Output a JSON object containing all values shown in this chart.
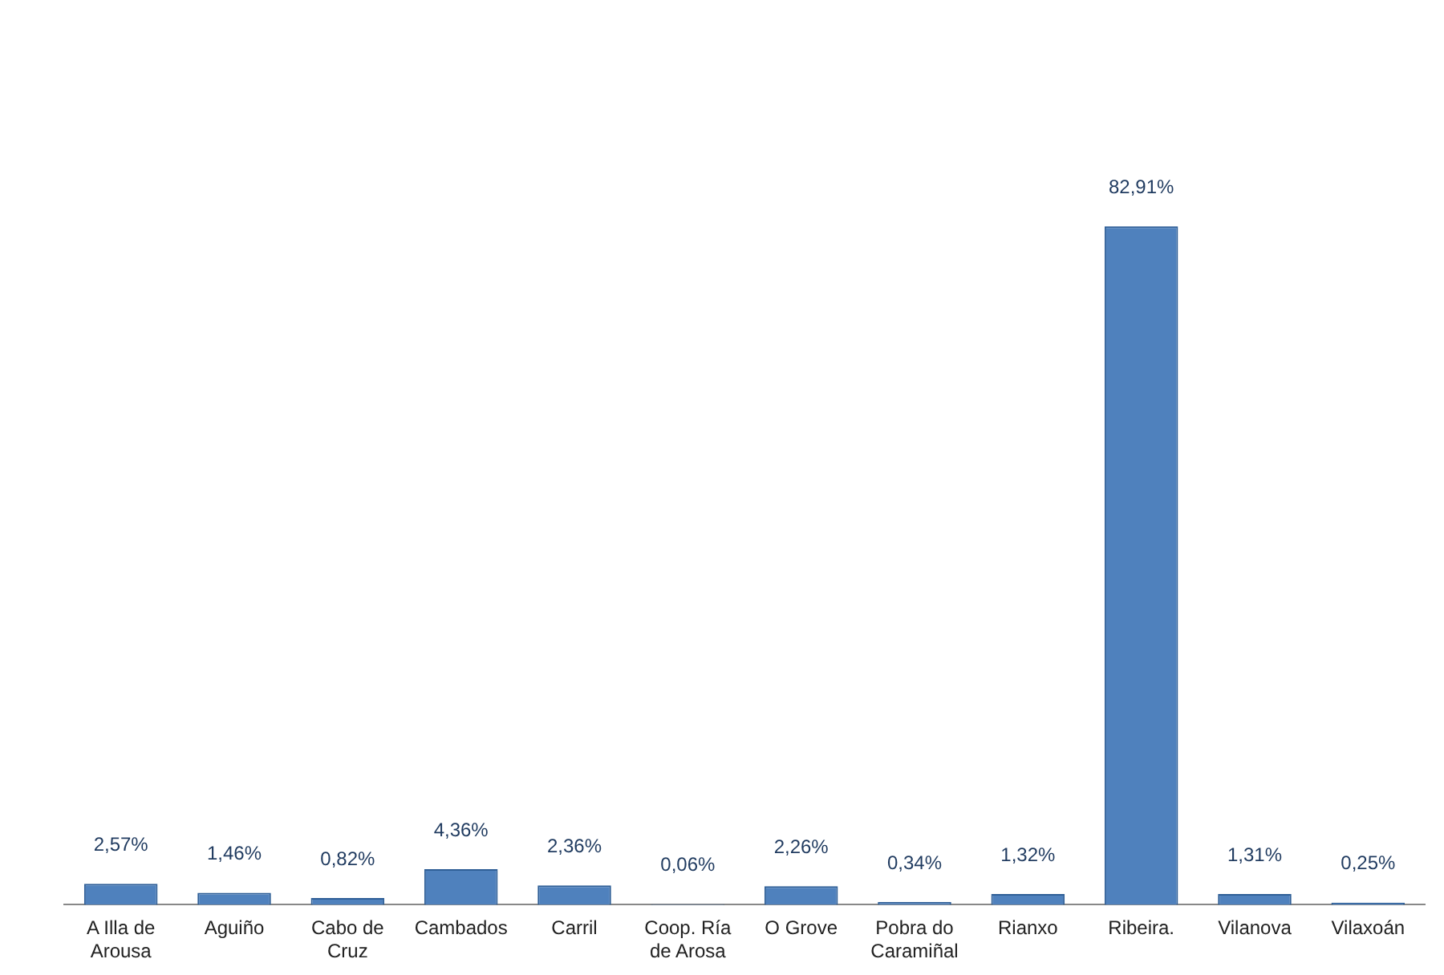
{
  "chart_data": {
    "type": "bar",
    "categories": [
      "A Illa de Arousa",
      "Aguiño",
      "Cabo de Cruz",
      "Cambados",
      "Carril",
      "Coop. Ría de Arosa",
      "O Grove",
      "Pobra do Caramiñal",
      "Rianxo",
      "Ribeira.",
      "Vilanova",
      "Vilaxoán"
    ],
    "values": [
      2.57,
      1.46,
      0.82,
      4.36,
      2.36,
      0.06,
      2.26,
      0.34,
      1.32,
      82.91,
      1.31,
      0.25
    ],
    "value_labels": [
      "2,57%",
      "1,46%",
      "0,82%",
      "4,36%",
      "2,36%",
      "0,06%",
      "2,26%",
      "0,34%",
      "1,32%",
      "82,91%",
      "1,31%",
      "0,25%"
    ],
    "color": "#4f81bd",
    "tick_labels": "x",
    "grid": false,
    "legend": false
  }
}
